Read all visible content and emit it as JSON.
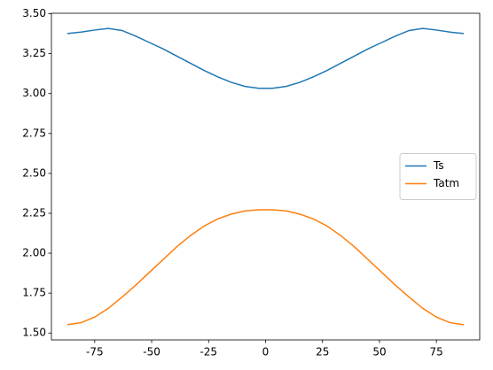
{
  "chart_data": {
    "type": "line",
    "x": [
      -87,
      -81,
      -75,
      -69,
      -63,
      -57,
      -51,
      -45,
      -39,
      -33,
      -27,
      -21,
      -15,
      -9,
      -3,
      3,
      9,
      15,
      21,
      27,
      33,
      39,
      45,
      51,
      57,
      63,
      69,
      75,
      81,
      87
    ],
    "series": [
      {
        "name": "Ts",
        "color": "#1f77b4",
        "values": [
          3.376,
          3.385,
          3.398,
          3.408,
          3.395,
          3.36,
          3.32,
          3.28,
          3.235,
          3.19,
          3.145,
          3.105,
          3.07,
          3.045,
          3.033,
          3.033,
          3.045,
          3.07,
          3.105,
          3.145,
          3.19,
          3.235,
          3.28,
          3.32,
          3.36,
          3.395,
          3.408,
          3.398,
          3.385,
          3.376
        ]
      },
      {
        "name": "Tatm",
        "color": "#ff7f0e",
        "values": [
          1.552,
          1.565,
          1.6,
          1.655,
          1.725,
          1.8,
          1.88,
          1.96,
          2.04,
          2.11,
          2.17,
          2.215,
          2.245,
          2.265,
          2.272,
          2.272,
          2.265,
          2.245,
          2.215,
          2.17,
          2.11,
          2.04,
          1.96,
          1.88,
          1.8,
          1.725,
          1.655,
          1.6,
          1.565,
          1.552
        ]
      }
    ],
    "xlim": [
      -94,
      94
    ],
    "xticks": [
      -75,
      -50,
      -25,
      0,
      25,
      50,
      75
    ],
    "ylim": [
      1.457,
      3.503
    ],
    "yticks": [
      {
        "value": 1.5,
        "label": "1.50"
      },
      {
        "value": 1.75,
        "label": "1.75"
      },
      {
        "value": 2.0,
        "label": "2.00"
      },
      {
        "value": 2.25,
        "label": "2.25"
      },
      {
        "value": 2.5,
        "label": "2.50"
      },
      {
        "value": 2.75,
        "label": "2.75"
      },
      {
        "value": 3.0,
        "label": "3.00"
      },
      {
        "value": 3.25,
        "label": "3.25"
      },
      {
        "value": 3.5,
        "label": "3.50"
      }
    ],
    "grid": false,
    "legend": "center right"
  }
}
